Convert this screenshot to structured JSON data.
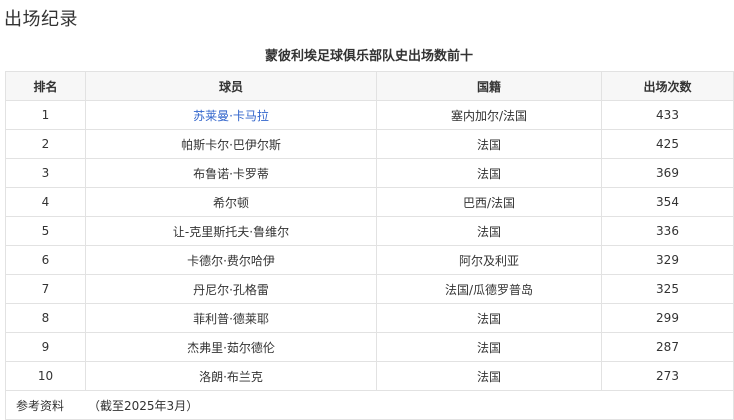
{
  "section_title": "出场纪录",
  "table": {
    "caption": "蒙彼利埃足球俱乐部队史出场数前十",
    "headers": [
      "排名",
      "球员",
      "国籍",
      "出场次数"
    ],
    "rows": [
      {
        "rank": "1",
        "player": "苏莱曼·卡马拉",
        "nationality": "塞内加尔/法国",
        "appearances": "433"
      },
      {
        "rank": "2",
        "player": "帕斯卡尔·巴伊尔斯",
        "nationality": "法国",
        "appearances": "425"
      },
      {
        "rank": "3",
        "player": "布鲁诺·卡罗蒂",
        "nationality": "法国",
        "appearances": "369"
      },
      {
        "rank": "4",
        "player": "希尔顿",
        "nationality": "巴西/法国",
        "appearances": "354"
      },
      {
        "rank": "5",
        "player": "让-克里斯托夫·鲁维尔",
        "nationality": "法国",
        "appearances": "336"
      },
      {
        "rank": "6",
        "player": "卡德尔·费尔哈伊",
        "nationality": "阿尔及利亚",
        "appearances": "329"
      },
      {
        "rank": "7",
        "player": "丹尼尔·孔格雷",
        "nationality": "法国/瓜德罗普岛",
        "appearances": "325"
      },
      {
        "rank": "8",
        "player": "菲利普·德莱耶",
        "nationality": "法国",
        "appearances": "299"
      },
      {
        "rank": "9",
        "player": "杰弗里·茹尔德伦",
        "nationality": "法国",
        "appearances": "287"
      },
      {
        "rank": "10",
        "player": "洛朗·布兰克",
        "nationality": "法国",
        "appearances": "273"
      }
    ],
    "footer": {
      "label": "参考资料",
      "note": "（截至2025年3月）"
    }
  },
  "colors": {
    "link": "#3366cc",
    "header_bg": "#f7f7f7",
    "border": "#e2e2e2"
  }
}
